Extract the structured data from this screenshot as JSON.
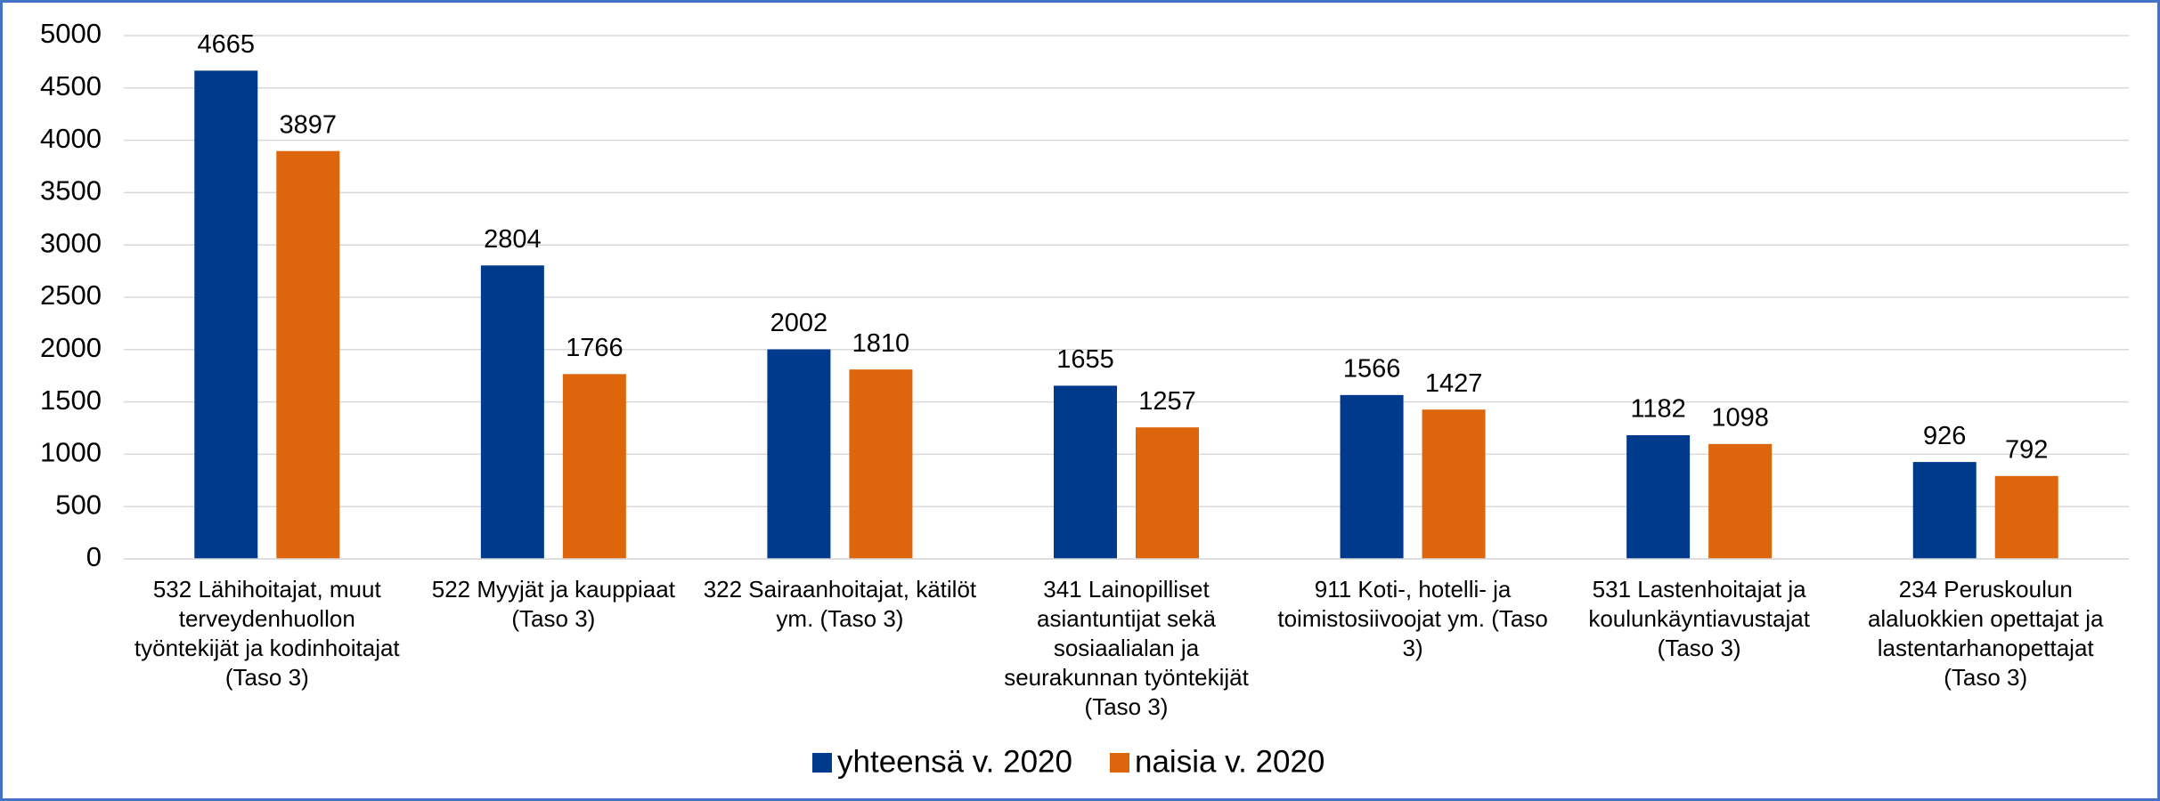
{
  "chart_data": {
    "type": "bar",
    "categories": [
      "532 Lähihoitajat, muut terveydenhuollon työntekijät ja kodinhoitajat (Taso 3)",
      "522 Myyjät ja kauppiaat (Taso 3)",
      "322 Sairaanhoitajat, kätilöt ym. (Taso 3)",
      "341 Lainopilliset asiantuntijat sekä sosiaalialan ja seurakunnan työntekijät (Taso 3)",
      "911 Koti-, hotelli- ja toimistosiivoojat ym. (Taso 3)",
      "531 Lastenhoitajat ja koulunkäyntiavustajat (Taso 3)",
      "234 Peruskoulun alaluokkien opettajat ja lastentarhanopettajat (Taso 3)"
    ],
    "series": [
      {
        "name": "yhteensä v. 2020",
        "color": "#003a8c",
        "values": [
          4665,
          2804,
          2002,
          1655,
          1566,
          1182,
          926
        ]
      },
      {
        "name": "naisia v. 2020",
        "color": "#dd660d",
        "values": [
          3897,
          1766,
          1810,
          1257,
          1427,
          1098,
          792
        ]
      }
    ],
    "ylim": [
      0,
      5000
    ],
    "yticks": [
      0,
      500,
      1000,
      1500,
      2000,
      2500,
      3000,
      3500,
      4000,
      4500,
      5000
    ],
    "grid": true,
    "legend": "bottom"
  }
}
